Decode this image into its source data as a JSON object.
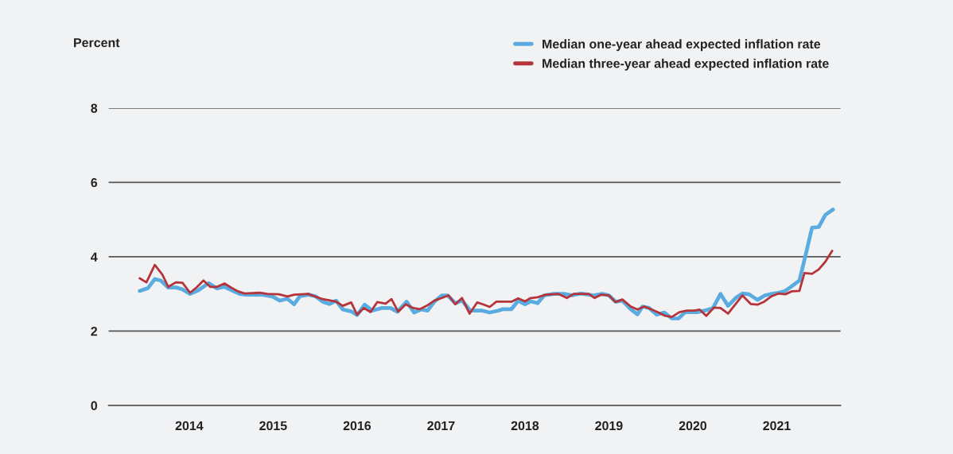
{
  "chart_data": {
    "type": "line",
    "ylabel": "Percent",
    "xlim": [
      2013.04,
      2021.76
    ],
    "xticks": [
      2014,
      2015,
      2016,
      2017,
      2018,
      2019,
      2020,
      2021
    ],
    "ylim": [
      0,
      8
    ],
    "yticks": [
      0,
      2,
      4,
      6,
      8
    ],
    "grid": "y",
    "legend": "top right",
    "marker": "none",
    "line_style": "solid",
    "series": [
      {
        "name": "Median one-year ahead expected inflation rate",
        "color": "#5aace0",
        "x": [
          2013.41,
          2013.51,
          2013.59,
          2013.66,
          2013.75,
          2013.85,
          2013.92,
          2014.01,
          2014.11,
          2014.23,
          2014.33,
          2014.42,
          2014.6,
          2014.68,
          2014.87,
          2014.99,
          2015.08,
          2015.17,
          2015.25,
          2015.32,
          2015.42,
          2015.5,
          2015.59,
          2015.67,
          2015.75,
          2015.83,
          2015.93,
          2016.0,
          2016.09,
          2016.18,
          2016.29,
          2016.4,
          2016.48,
          2016.59,
          2016.68,
          2016.76,
          2016.84,
          2016.92,
          2017.01,
          2017.08,
          2017.17,
          2017.25,
          2017.35,
          2017.49,
          2017.58,
          2017.68,
          2017.74,
          2017.84,
          2017.92,
          2018.0,
          2018.07,
          2018.15,
          2018.23,
          2018.34,
          2018.47,
          2018.56,
          2018.66,
          2018.82,
          2018.92,
          2019.0,
          2019.08,
          2019.16,
          2019.26,
          2019.34,
          2019.4,
          2019.48,
          2019.57,
          2019.66,
          2019.75,
          2019.83,
          2019.91,
          2020.05,
          2020.14,
          2020.24,
          2020.33,
          2020.42,
          2020.51,
          2020.59,
          2020.67,
          2020.77,
          2020.86,
          2020.94,
          2021.02,
          2021.1,
          2021.18,
          2021.27,
          2021.34,
          2021.42,
          2021.5,
          2021.58,
          2021.67
        ],
        "values": [
          3.08,
          3.16,
          3.4,
          3.36,
          3.17,
          3.17,
          3.12,
          3.0,
          3.1,
          3.29,
          3.15,
          3.19,
          3.0,
          2.98,
          2.98,
          2.93,
          2.82,
          2.87,
          2.72,
          2.94,
          2.98,
          2.94,
          2.79,
          2.73,
          2.82,
          2.58,
          2.53,
          2.43,
          2.71,
          2.55,
          2.62,
          2.62,
          2.52,
          2.79,
          2.5,
          2.58,
          2.55,
          2.79,
          2.96,
          2.96,
          2.75,
          2.82,
          2.55,
          2.55,
          2.5,
          2.55,
          2.59,
          2.59,
          2.82,
          2.72,
          2.8,
          2.75,
          2.96,
          3.0,
          3.0,
          2.96,
          3.01,
          2.96,
          3.0,
          2.96,
          2.79,
          2.82,
          2.59,
          2.45,
          2.66,
          2.62,
          2.44,
          2.5,
          2.34,
          2.34,
          2.51,
          2.51,
          2.55,
          2.62,
          3.0,
          2.68,
          2.89,
          3.01,
          2.99,
          2.84,
          2.96,
          3.0,
          3.03,
          3.08,
          3.21,
          3.36,
          4.01,
          4.78,
          4.8,
          5.13,
          5.27
        ]
      },
      {
        "name": "Median three-year ahead expected inflation rate",
        "color": "#b5343a",
        "x": [
          2013.41,
          2013.49,
          2013.59,
          2013.68,
          2013.75,
          2013.84,
          2013.92,
          2014.01,
          2014.09,
          2014.17,
          2014.25,
          2014.33,
          2014.42,
          2014.5,
          2014.58,
          2014.66,
          2014.84,
          2014.93,
          2015.07,
          2015.17,
          2015.25,
          2015.42,
          2015.5,
          2015.59,
          2015.69,
          2015.75,
          2015.83,
          2015.93,
          2016.0,
          2016.08,
          2016.16,
          2016.24,
          2016.34,
          2016.41,
          2016.49,
          2016.58,
          2016.67,
          2016.75,
          2016.83,
          2016.92,
          2017.01,
          2017.09,
          2017.17,
          2017.25,
          2017.34,
          2017.43,
          2017.5,
          2017.58,
          2017.66,
          2017.84,
          2017.92,
          2018.0,
          2018.07,
          2018.15,
          2018.25,
          2018.4,
          2018.5,
          2018.58,
          2018.76,
          2018.83,
          2018.91,
          2019.0,
          2019.08,
          2019.16,
          2019.26,
          2019.34,
          2019.42,
          2019.51,
          2019.59,
          2019.67,
          2019.75,
          2019.84,
          2019.93,
          2020.02,
          2020.08,
          2020.16,
          2020.25,
          2020.33,
          2020.42,
          2020.51,
          2020.59,
          2020.69,
          2020.77,
          2020.85,
          2020.94,
          2021.02,
          2021.1,
          2021.18,
          2021.27,
          2021.33,
          2021.42,
          2021.5,
          2021.58,
          2021.66
        ],
        "values": [
          3.42,
          3.31,
          3.78,
          3.52,
          3.19,
          3.31,
          3.3,
          3.03,
          3.18,
          3.36,
          3.19,
          3.19,
          3.28,
          3.17,
          3.07,
          3.01,
          3.03,
          3.0,
          2.99,
          2.93,
          2.98,
          3.0,
          2.93,
          2.86,
          2.82,
          2.79,
          2.68,
          2.77,
          2.44,
          2.62,
          2.51,
          2.78,
          2.74,
          2.86,
          2.52,
          2.72,
          2.62,
          2.59,
          2.68,
          2.82,
          2.89,
          2.96,
          2.72,
          2.89,
          2.47,
          2.77,
          2.72,
          2.65,
          2.79,
          2.79,
          2.88,
          2.8,
          2.89,
          2.91,
          2.98,
          3.0,
          2.89,
          3.0,
          3.0,
          2.89,
          2.98,
          2.96,
          2.78,
          2.85,
          2.66,
          2.58,
          2.66,
          2.58,
          2.5,
          2.41,
          2.38,
          2.51,
          2.55,
          2.55,
          2.58,
          2.41,
          2.63,
          2.62,
          2.47,
          2.73,
          2.96,
          2.73,
          2.71,
          2.79,
          2.94,
          3.01,
          2.99,
          3.07,
          3.08,
          3.56,
          3.54,
          3.66,
          3.87,
          4.16
        ]
      }
    ]
  }
}
